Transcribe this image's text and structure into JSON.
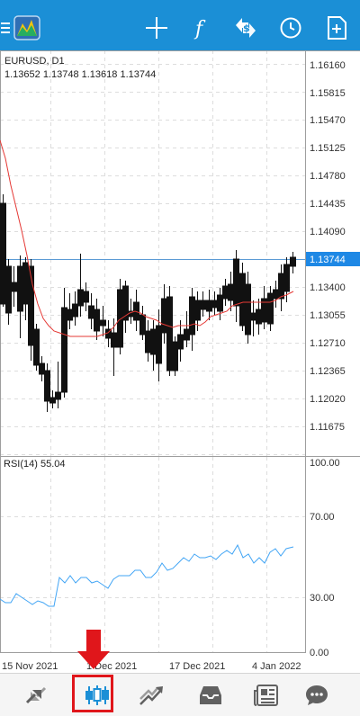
{
  "toolbar": {
    "icons": [
      "menu-icon",
      "app-logo-icon",
      "crosshair-icon",
      "indicators-icon",
      "objects-icon",
      "timeframe-icon",
      "new-order-icon"
    ]
  },
  "chart": {
    "symbol_label": "EURUSD, D1",
    "ohlc_label": "1.13652 1.13748 1.13618 1.13744",
    "current_price_label": "1.13744",
    "current_price_color": "#1e88e5",
    "price_ticks": [
      "1.16160",
      "1.15815",
      "1.15470",
      "1.15125",
      "1.14780",
      "1.14435",
      "1.14090",
      "1.13400",
      "1.13055",
      "1.12710",
      "1.12365",
      "1.12020",
      "1.11675"
    ],
    "date_ticks": [
      "15 Nov 2021",
      "1 Dec 2021",
      "17 Dec 2021",
      "4 Jan 2022"
    ],
    "ma_color": "#e53935"
  },
  "rsi": {
    "label": "RSI(14) 55.04",
    "ticks": [
      "100.00",
      "70.00",
      "30.00",
      "0.00"
    ],
    "line_color": "#42a5f5"
  },
  "bottom_nav": {
    "items": [
      "quotes-icon",
      "chart-icon",
      "trade-icon",
      "history-icon",
      "news-icon",
      "messages-icon"
    ],
    "active": "chart-icon",
    "highlight_color": "#e0161b"
  }
}
